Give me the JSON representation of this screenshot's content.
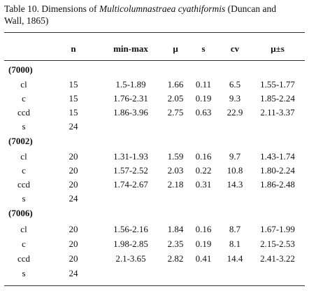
{
  "title": {
    "prefix": "Table 10. Dimensions of ",
    "taxon": "Multicolumnastraea cyathiformis",
    "suffix": " (Duncan and Wall, 1865)"
  },
  "table": {
    "header": [
      "n",
      "min-max",
      "μ",
      "s",
      "cv",
      "μ±s"
    ],
    "groups": [
      {
        "label": "(7000)",
        "rows": [
          [
            "cl",
            15,
            "1.5-1.89",
            1.66,
            0.11,
            6.5,
            "1.55-1.77"
          ],
          [
            "c",
            15,
            "1.76-2.31",
            2.05,
            0.19,
            9.3,
            "1.85-2.24"
          ],
          [
            "ccd",
            15,
            "1.86-3.96",
            2.75,
            0.63,
            22.9,
            "2.11-3.37"
          ],
          [
            "s",
            24
          ]
        ]
      },
      {
        "label": "(7002)",
        "rows": [
          [
            "cl",
            20,
            "1.31-1.93",
            1.59,
            0.16,
            9.7,
            "1.43-1.74"
          ],
          [
            "c",
            20,
            "1.57-2.52",
            2.03,
            0.22,
            10.8,
            "1.80-2.24"
          ],
          [
            "ccd",
            20,
            "1.74-2.67",
            2.18,
            0.31,
            14.3,
            "1.86-2.48"
          ],
          [
            "s",
            24
          ]
        ]
      },
      {
        "label": "(7006)",
        "rows": [
          [
            "cl",
            20,
            "1.56-2.16",
            1.84,
            0.16,
            8.7,
            "1.67-1.99"
          ],
          [
            "c",
            20,
            "1.98-2.85",
            2.35,
            0.19,
            8.1,
            "2.15-2.53"
          ],
          [
            "ccd",
            20,
            "2.1-3.65",
            2.82,
            0.41,
            14.4,
            "2.41-3.22"
          ],
          [
            "s",
            24
          ]
        ]
      }
    ]
  }
}
